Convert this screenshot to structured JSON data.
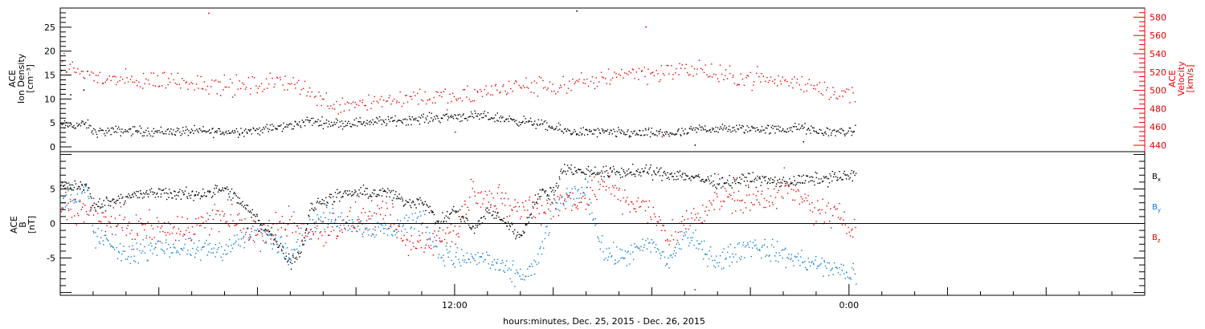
{
  "chart_data": [
    {
      "type": "scatter",
      "panel": "density-velocity",
      "left_axis_label_lines": [
        "ACE",
        "Ion Density",
        "[cm⁻³]"
      ],
      "right_axis_label_lines": [
        "ACE",
        "Velocity",
        "[km/s]"
      ],
      "left_ylim": [
        -1,
        29
      ],
      "right_ylim": [
        433,
        590
      ],
      "left_ticks": [
        0,
        5,
        10,
        15,
        20,
        25
      ],
      "right_ticks": [
        440,
        460,
        480,
        500,
        520,
        540,
        560,
        580
      ],
      "x_start_hours": 0,
      "x_end_hours": 33,
      "series": [
        {
          "axis": "left",
          "color": "#000000",
          "key": [
            [
              0,
              4.5
            ],
            [
              0.8,
              4.8
            ],
            [
              1,
              3.2
            ],
            [
              2,
              3.5
            ],
            [
              3,
              3.3
            ],
            [
              4,
              3.4
            ],
            [
              5,
              3.2
            ],
            [
              6,
              3.6
            ],
            [
              6.5,
              4
            ],
            [
              7,
              4.5
            ],
            [
              7.5,
              5.5
            ],
            [
              8,
              5.2
            ],
            [
              8.5,
              5.0
            ],
            [
              9,
              5.2
            ],
            [
              10,
              5.5
            ],
            [
              11,
              6.0
            ],
            [
              12,
              6.5
            ],
            [
              13,
              6.4
            ],
            [
              14,
              5.5
            ],
            [
              14.5,
              5.0
            ],
            [
              15,
              4.0
            ],
            [
              15.5,
              3.3
            ],
            [
              16,
              3.2
            ],
            [
              17,
              3.0
            ],
            [
              18,
              2.9
            ],
            [
              19,
              3.0
            ],
            [
              19.5,
              4.0
            ],
            [
              20,
              3.8
            ],
            [
              21,
              3.9
            ],
            [
              22,
              3.7
            ],
            [
              22.5,
              4.2
            ],
            [
              23,
              3.2
            ],
            [
              24,
              3.3
            ]
          ],
          "scatter": 1.0,
          "points_per_hour": 36,
          "end_hours": 24.2,
          "outliers": [
            [
              15.7,
              28.5
            ],
            [
              0.7,
              12
            ],
            [
              0.3,
              11
            ],
            [
              19.3,
              0.5
            ],
            [
              22.6,
              1.2
            ]
          ]
        },
        {
          "axis": "right",
          "color": "#e60000",
          "key": [
            [
              0,
              530
            ],
            [
              1,
              515
            ],
            [
              2,
              510
            ],
            [
              3,
              512
            ],
            [
              4,
              510
            ],
            [
              5,
              505
            ],
            [
              6,
              505
            ],
            [
              7,
              512
            ],
            [
              7.5,
              500
            ],
            [
              8,
              488
            ],
            [
              8.5,
              485
            ],
            [
              9,
              488
            ],
            [
              10,
              490
            ],
            [
              11,
              495
            ],
            [
              12,
              490
            ],
            [
              13,
              500
            ],
            [
              14,
              505
            ],
            [
              15,
              505
            ],
            [
              16,
              508
            ],
            [
              17,
              520
            ],
            [
              18,
              520
            ],
            [
              19,
              522
            ],
            [
              19.5,
              525
            ],
            [
              20,
              515
            ],
            [
              21,
              515
            ],
            [
              22,
              510
            ],
            [
              23,
              505
            ],
            [
              24,
              495
            ]
          ],
          "scatter": 11,
          "points_per_hour": 22,
          "end_hours": 24.2,
          "outliers": [
            [
              4.5,
              585
            ],
            [
              12,
              455
            ],
            [
              18.3,
              450
            ],
            [
              17.8,
              570
            ]
          ]
        }
      ]
    },
    {
      "type": "scatter",
      "panel": "magnetic-field",
      "left_axis_label_lines": [
        "ACE",
        "B",
        "[nT]"
      ],
      "ylim": [
        -10.4,
        10.4
      ],
      "ticks": [
        -5,
        0,
        5
      ],
      "x_ticks": [
        {
          "hours": 12,
          "label": "12:00"
        },
        {
          "hours": 24,
          "label": "0:00"
        }
      ],
      "x_start_hours": 0,
      "x_end_hours": 33,
      "xlabel": "hours:minutes, Dec. 25, 2015 - Dec. 26, 2015",
      "legend": [
        {
          "base": "B",
          "sub": "x",
          "color": "#000000"
        },
        {
          "base": "B",
          "sub": "y",
          "color": "#0a7bd1"
        },
        {
          "base": "B",
          "sub": "z",
          "color": "#e60000"
        }
      ],
      "series": [
        {
          "name": "Bx",
          "color": "#000000",
          "key": [
            [
              0,
              5.5
            ],
            [
              0.8,
              5.5
            ],
            [
              1,
              2.5
            ],
            [
              2,
              4.0
            ],
            [
              3,
              4.5
            ],
            [
              4,
              4.2
            ],
            [
              5,
              5.0
            ],
            [
              5.5,
              3.0
            ],
            [
              6.3,
              -1.0
            ],
            [
              6.8,
              -4.0
            ],
            [
              7,
              -5.5
            ],
            [
              7.3,
              -4.0
            ],
            [
              7.6,
              2.0
            ],
            [
              8,
              3.5
            ],
            [
              9,
              4.5
            ],
            [
              10,
              4.5
            ],
            [
              10.5,
              3.0
            ],
            [
              11,
              3.5
            ],
            [
              11.5,
              0.0
            ],
            [
              12,
              2.0
            ],
            [
              12.6,
              -1.0
            ],
            [
              13,
              2.0
            ],
            [
              13.5,
              0.5
            ],
            [
              14,
              -2.0
            ],
            [
              14.5,
              4.0
            ],
            [
              15,
              5.0
            ],
            [
              15.3,
              8.0
            ],
            [
              16,
              7.5
            ],
            [
              17,
              7.5
            ],
            [
              18,
              7.5
            ],
            [
              19,
              7.0
            ],
            [
              20,
              6.0
            ],
            [
              21,
              6.5
            ],
            [
              22,
              6.0
            ],
            [
              23,
              6.5
            ],
            [
              24,
              7.0
            ]
          ],
          "scatter": 0.9,
          "points_per_hour": 40,
          "end_hours": 24.2
        },
        {
          "name": "By",
          "color": "#0a7bd1",
          "key": [
            [
              0,
              3.0
            ],
            [
              0.8,
              5.0
            ],
            [
              1,
              -1.5
            ],
            [
              2,
              -4.5
            ],
            [
              3,
              -3.0
            ],
            [
              4,
              -4.0
            ],
            [
              5,
              -3.5
            ],
            [
              6,
              -1.0
            ],
            [
              6.5,
              -2.5
            ],
            [
              7,
              -4.0
            ],
            [
              7.5,
              -1.0
            ],
            [
              8,
              1.0
            ],
            [
              9,
              0.0
            ],
            [
              10,
              -1.0
            ],
            [
              11,
              1.0
            ],
            [
              11.5,
              -4.0
            ],
            [
              12,
              -5.0
            ],
            [
              13,
              -5.0
            ],
            [
              13.5,
              -7.0
            ],
            [
              14,
              -7.5
            ],
            [
              14.5,
              -6.0
            ],
            [
              15,
              2.5
            ],
            [
              15.5,
              4.0
            ],
            [
              16,
              5.0
            ],
            [
              16.5,
              -4.0
            ],
            [
              17,
              -5.0
            ],
            [
              18,
              -3.0
            ],
            [
              18.5,
              -5.5
            ],
            [
              19,
              -1.5
            ],
            [
              20,
              -5.5
            ],
            [
              21,
              -3.0
            ],
            [
              22,
              -4.5
            ],
            [
              23,
              -6.0
            ],
            [
              24,
              -7.0
            ]
          ],
          "scatter": 1.6,
          "points_per_hour": 34,
          "end_hours": 24.2
        },
        {
          "name": "Bz",
          "color": "#e60000",
          "key": [
            [
              0,
              3.0
            ],
            [
              1,
              1.5
            ],
            [
              2,
              -0.5
            ],
            [
              3,
              -1.0
            ],
            [
              4,
              -0.5
            ],
            [
              5,
              1.5
            ],
            [
              6,
              -2.0
            ],
            [
              7,
              0.5
            ],
            [
              7.5,
              -1.5
            ],
            [
              8,
              -1.0
            ],
            [
              9,
              0.5
            ],
            [
              10,
              1.0
            ],
            [
              10.5,
              -3.0
            ],
            [
              11,
              -2.5
            ],
            [
              12,
              -1.5
            ],
            [
              12.5,
              5.0
            ],
            [
              13,
              4.0
            ],
            [
              14,
              2.0
            ],
            [
              15,
              3.0
            ],
            [
              16,
              4.0
            ],
            [
              16.5,
              6.0
            ],
            [
              17,
              4.0
            ],
            [
              18,
              1.5
            ],
            [
              18.5,
              -2.0
            ],
            [
              19,
              0.0
            ],
            [
              20,
              4.0
            ],
            [
              21,
              3.0
            ],
            [
              22,
              5.0
            ],
            [
              23,
              2.0
            ],
            [
              24,
              0.5
            ]
          ],
          "scatter": 2.2,
          "points_per_hour": 30,
          "end_hours": 24.2,
          "outliers": [
            [
              19.3,
              -9.5
            ],
            [
              20.5,
              6.5
            ]
          ]
        }
      ]
    }
  ]
}
